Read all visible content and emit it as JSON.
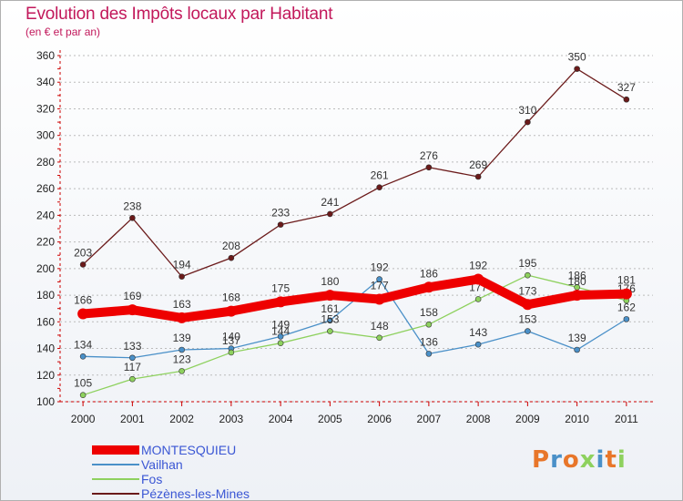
{
  "header": {
    "title": "Evolution des Impôts locaux par Habitant",
    "subtitle": "(en € et par an)"
  },
  "logo": {
    "text": "Proxiti"
  },
  "colors": {
    "MONTESQUIEU": "#ee0000",
    "Vailhan": "#4a90c8",
    "Fos": "#8ed15e",
    "Pezenes": "#6b1a1a",
    "axis_labels": "#222222",
    "value_labels": "#333333",
    "legend_text": "#3a56d4",
    "title": "#c2185b",
    "axis_red": "#cc0000",
    "gridlines": "#bbbbbb"
  },
  "chart_data": {
    "type": "line",
    "title": "Evolution des Impôts locaux par Habitant",
    "subtitle": "(en € et par an)",
    "xlabel": "",
    "ylabel": "",
    "x": [
      "2000",
      "2001",
      "2002",
      "2003",
      "2004",
      "2005",
      "2006",
      "2007",
      "2008",
      "2009",
      "2010",
      "2011"
    ],
    "y_ticks": [
      100,
      120,
      140,
      160,
      180,
      200,
      220,
      240,
      260,
      280,
      300,
      320,
      340,
      360
    ],
    "ylim": [
      100,
      360
    ],
    "grid": "horizontal dashed",
    "legend_position": "bottom-left",
    "series": [
      {
        "name": "Pézènes-les-Mines",
        "color_key": "Pezenes",
        "thick": false,
        "values": [
          203,
          238,
          194,
          208,
          233,
          241,
          261,
          276,
          269,
          310,
          350,
          327
        ],
        "labels": [
          "203",
          "238",
          "194",
          "208",
          "233",
          "241",
          "261",
          "276",
          "269",
          "310",
          "350",
          "327"
        ]
      },
      {
        "name": "Vailhan",
        "color_key": "Vailhan",
        "thick": false,
        "values": [
          134,
          133,
          139,
          140,
          149,
          161,
          192,
          136,
          143,
          153,
          139,
          162
        ],
        "labels": [
          "134",
          "133",
          "139",
          "140",
          "149",
          "161",
          "192",
          "136",
          "143",
          "153",
          "139",
          "162"
        ]
      },
      {
        "name": "Fos",
        "color_key": "Fos",
        "thick": false,
        "values": [
          105,
          117,
          123,
          137,
          144,
          153,
          148,
          158,
          177,
          195,
          186,
          176
        ],
        "labels": [
          "105",
          "117",
          "123",
          "137",
          "144",
          "153",
          "148",
          "158",
          "177",
          "195",
          "186",
          "176"
        ]
      },
      {
        "name": "MONTESQUIEU",
        "color_key": "MONTESQUIEU",
        "thick": true,
        "values": [
          166,
          169,
          163,
          168,
          175,
          180,
          177,
          186,
          192,
          173,
          180,
          181
        ],
        "labels": [
          "166",
          "169",
          "163",
          "168",
          "175",
          "180",
          "177",
          "186",
          "192",
          "173",
          "180",
          "181"
        ]
      }
    ],
    "legend": [
      {
        "label": "MONTESQUIEU",
        "color_key": "MONTESQUIEU",
        "thick": true
      },
      {
        "label": "Vailhan",
        "color_key": "Vailhan",
        "thick": false
      },
      {
        "label": "Fos",
        "color_key": "Fos",
        "thick": false
      },
      {
        "label": "Pézènes-les-Mines",
        "color_key": "Pezenes",
        "thick": false
      }
    ]
  }
}
